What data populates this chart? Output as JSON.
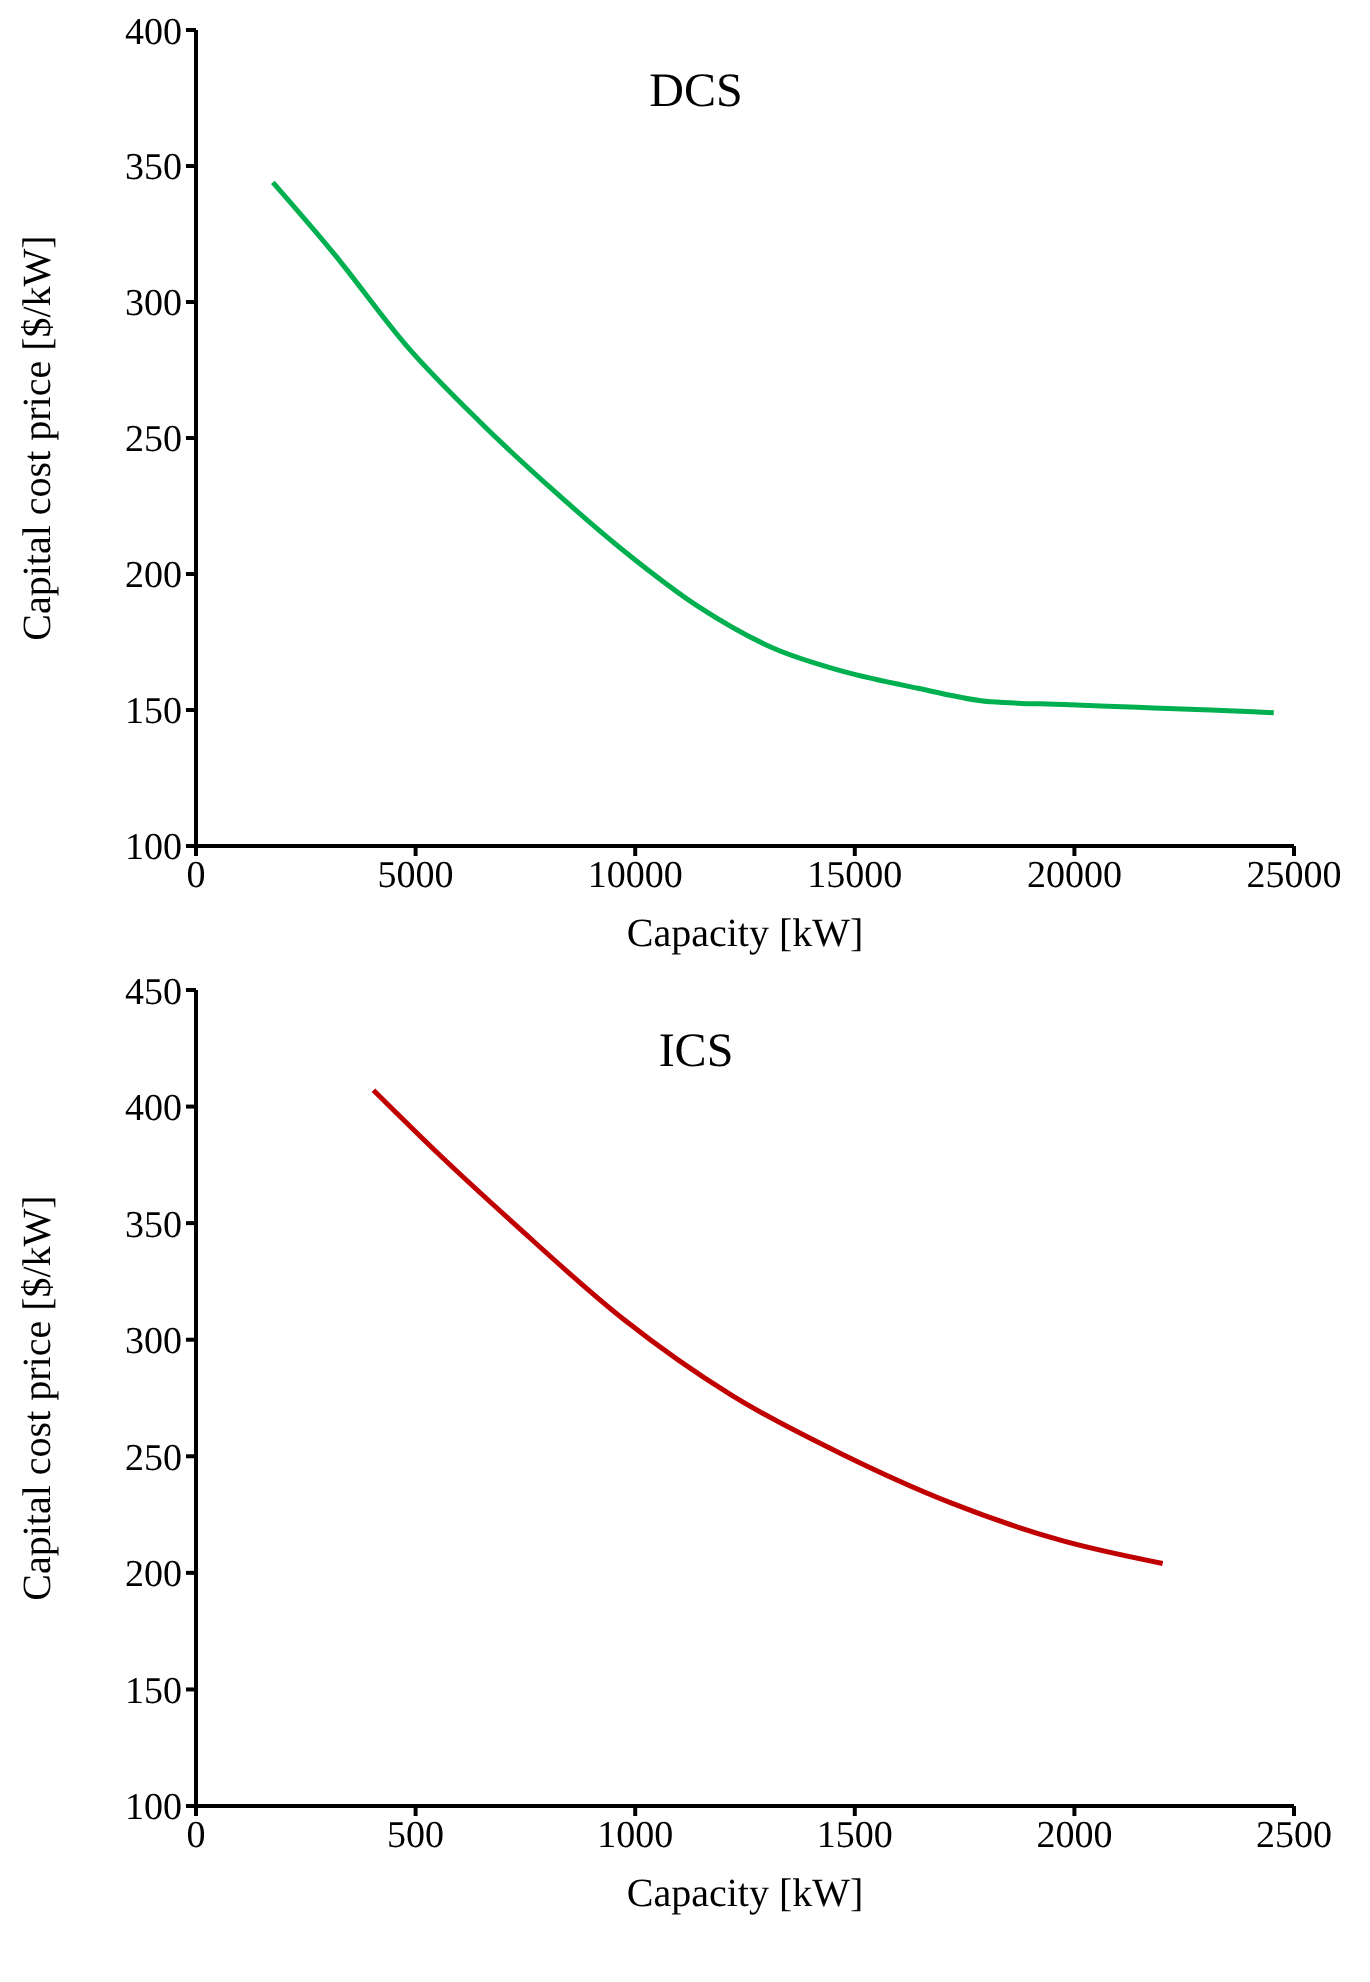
{
  "chart_data": [
    {
      "type": "line",
      "title": "DCS",
      "xlabel": "Capacity  [kW]",
      "ylabel": "Capital  cost price  [$/kW]",
      "color": "#00b050",
      "x": [
        1750,
        3130,
        4790,
        6460,
        8120,
        9780,
        11440,
        13110,
        14780,
        16440,
        18100,
        19770,
        21430,
        23100,
        24540
      ],
      "values": [
        344,
        318,
        284,
        256,
        231,
        208,
        188,
        173,
        164,
        158,
        153,
        152,
        151,
        150,
        149
      ],
      "xlim": [
        0,
        25000
      ],
      "xticks": [
        0,
        5000,
        10000,
        15000,
        20000,
        25000
      ],
      "ylim": [
        100,
        400
      ],
      "yticks": [
        100,
        150,
        200,
        250,
        300,
        350,
        400
      ]
    },
    {
      "type": "line",
      "title": "ICS",
      "xlabel": "Capacity  [kW]",
      "ylabel": "Capital  cost price  [$/kW]",
      "color": "#c00000",
      "x": [
        404,
        556,
        723,
        972,
        1221,
        1470,
        1719,
        1968,
        2201
      ],
      "values": [
        407,
        379,
        350,
        309,
        276,
        251,
        230,
        214,
        204
      ],
      "xlim": [
        0,
        2500
      ],
      "xticks": [
        0,
        500,
        1000,
        1500,
        2000,
        2500
      ],
      "ylim": [
        100,
        450
      ],
      "yticks": [
        100,
        150,
        200,
        250,
        300,
        350,
        400,
        450
      ]
    }
  ]
}
